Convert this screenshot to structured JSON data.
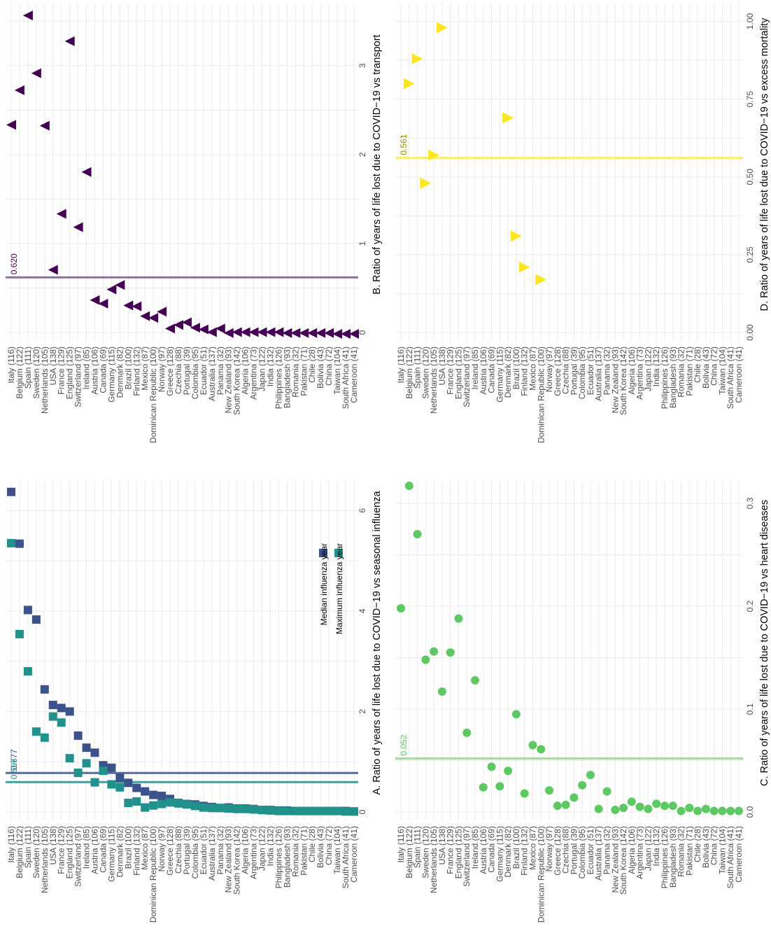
{
  "countries": [
    "Italy (116)",
    "Belgium (122)",
    "Spain (111)",
    "Sweden (120)",
    "Netherlands (105)",
    "USA (138)",
    "France (129)",
    "England (125)",
    "Switzerland (97)",
    "Ireland (85)",
    "Austria (106)",
    "Canada (69)",
    "Germany (115)",
    "Denmark (82)",
    "Brazil (100)",
    "Finland (132)",
    "Mexico (87)",
    "Dominican Republic (100)",
    "Norway (97)",
    "Greece (128)",
    "Czechia (88)",
    "Portugal (39)",
    "Colombia (95)",
    "Ecuador (51)",
    "Australia (137)",
    "Panama (32)",
    "New Zealand (93)",
    "South Korea (142)",
    "Algeria (106)",
    "Argentina (73)",
    "Japan (122)",
    "India (132)",
    "Philippines (126)",
    "Bangladesh (93)",
    "Romania (32)",
    "Pakistan (71)",
    "Chile (28)",
    "Bolivia (43)",
    "China (72)",
    "Taiwan (104)",
    "South Africa (41)",
    "Cameroon (41)"
  ],
  "colors": {
    "median_influenza": "#3b528b",
    "maximum_influenza": "#21918c",
    "transport": "#440154",
    "transport_line": "#7b5691",
    "heart": "#5ec962",
    "heart_line": "#90d68f",
    "excess": "#fde725",
    "excess_line": "#f7ea63",
    "grid": "#ebebeb",
    "axis_text": "#4d4d4d"
  },
  "chart_data": [
    {
      "id": "A",
      "type": "scatter",
      "title": "A. Ratio of years of life lost due to COVID−19 vs seasonal influenza",
      "ylim": [
        0,
        7
      ],
      "ticks": [
        "0",
        "2",
        "4",
        "6"
      ],
      "tick_values": [
        0,
        2,
        4,
        6
      ],
      "legend": {
        "entries": [
          "Median influenza year",
          "Maximum influenza year"
        ],
        "position": "bottom-right"
      },
      "reference_lines": [
        {
          "label": "0.777",
          "value": 0.777,
          "series": "Median influenza year"
        },
        {
          "label": "0.596",
          "value": 0.596,
          "series": "Maximum influenza year"
        }
      ],
      "series": [
        {
          "name": "Median influenza year",
          "marker": "square",
          "values": [
            6.37,
            5.34,
            4.02,
            3.83,
            2.44,
            2.13,
            2.07,
            2.0,
            1.52,
            1.28,
            1.18,
            0.93,
            0.88,
            0.68,
            0.58,
            0.48,
            0.41,
            0.34,
            0.32,
            0.26,
            0.18,
            0.16,
            0.15,
            0.12,
            0.1,
            0.08,
            0.09,
            0.07,
            0.07,
            0.06,
            0.04,
            0.04,
            0.03,
            0.03,
            0.02,
            0.02,
            0.02,
            0.02,
            0.02,
            0.02,
            0.02,
            0.01
          ]
        },
        {
          "name": "Maximum influenza year",
          "marker": "square",
          "values": [
            5.35,
            3.54,
            2.8,
            1.6,
            1.48,
            1.9,
            1.78,
            1.07,
            0.78,
            0.97,
            0.59,
            0.82,
            0.55,
            0.49,
            0.18,
            0.21,
            0.09,
            0.13,
            0.16,
            0.19,
            0.17,
            0.15,
            0.12,
            0.09,
            0.08,
            0.08,
            0.07,
            0.06,
            0.06,
            0.05,
            0.04,
            0.03,
            0.02,
            0.02,
            0.02,
            0.02,
            0.02,
            0.02,
            0.02,
            0.02,
            0.01,
            0.01
          ]
        }
      ]
    },
    {
      "id": "B",
      "type": "scatter",
      "title": "B. Ratio of years of life lost due to COVID−19 vs transport",
      "ylim": [
        0,
        3.6
      ],
      "ticks": [
        "0",
        "1",
        "2",
        "3"
      ],
      "tick_values": [
        0,
        1,
        2,
        3
      ],
      "reference_lines": [
        {
          "label": "0.620",
          "value": 0.62
        }
      ],
      "series": [
        {
          "marker": "triangle-left",
          "values": [
            2.35,
            2.74,
            3.58,
            2.93,
            2.34,
            0.72,
            1.35,
            3.29,
            1.2,
            1.82,
            0.38,
            0.34,
            0.5,
            0.55,
            0.32,
            0.31,
            0.2,
            0.18,
            0.25,
            0.06,
            0.1,
            0.13,
            0.07,
            0.05,
            0.02,
            0.06,
            0.01,
            0.02,
            0.02,
            0.02,
            0.02,
            0.02,
            0.02,
            0.01,
            0.01,
            0.01,
            0.01,
            0.01,
            0.01,
            0.0,
            0.0,
            0.0
          ]
        }
      ]
    },
    {
      "id": "C",
      "type": "scatter",
      "title": "C. Ratio of years of life lost due to COVID−19 vs heart diseases",
      "ylim": [
        0,
        0.31
      ],
      "ticks": [
        "0.0",
        "0.1",
        "0.2",
        "0.3"
      ],
      "tick_values": [
        0,
        0.1,
        0.2,
        0.3
      ],
      "reference_lines": [
        {
          "label": "0.052",
          "value": 0.052
        }
      ],
      "series": [
        {
          "marker": "circle",
          "values": [
            0.198,
            0.317,
            0.27,
            0.148,
            0.156,
            0.117,
            0.155,
            0.188,
            0.077,
            0.128,
            0.024,
            0.044,
            0.025,
            0.04,
            0.095,
            0.018,
            0.065,
            0.061,
            0.021,
            0.006,
            0.007,
            0.014,
            0.026,
            0.036,
            0.003,
            0.02,
            0.002,
            0.004,
            0.01,
            0.005,
            0.003,
            0.008,
            0.006,
            0.006,
            0.001,
            0.004,
            0.001,
            0.003,
            0.001,
            0.001,
            0.001,
            0.001
          ]
        }
      ]
    },
    {
      "id": "D",
      "type": "scatter",
      "title": "D. Ratio of years of life lost due to COVID−19 vs excess mortality",
      "ylim": [
        0,
        1.04
      ],
      "ticks": [
        "0.00",
        "0.25",
        "0.50",
        "0.75",
        "1.00"
      ],
      "tick_values": [
        0,
        0.25,
        0.5,
        0.75,
        1.0
      ],
      "reference_lines": [
        {
          "label": "0.561",
          "value": 0.561
        }
      ],
      "series": [
        {
          "marker": "triangle-down",
          "country_indices": [
            1,
            2,
            5,
            4,
            3,
            13,
            14,
            15,
            17
          ],
          "values": [
            0.8,
            0.88,
            0.98,
            0.57,
            0.48,
            0.69,
            0.31,
            0.21,
            0.17
          ]
        }
      ]
    }
  ]
}
